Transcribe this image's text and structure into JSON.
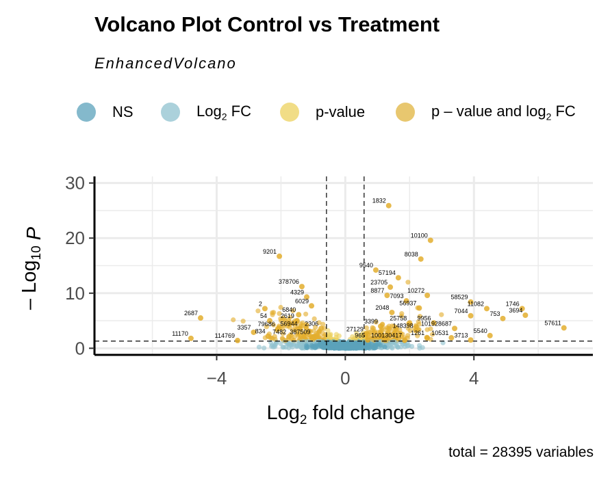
{
  "title": "Volcano Plot Control vs Treatment",
  "subtitle": "EnhancedVolcano",
  "legend": [
    {
      "label": "NS",
      "color": "#5ba2bb"
    },
    {
      "label_main": "Log",
      "label_sub": "2",
      "label_rest": " FC",
      "color": "#8fc2cf"
    },
    {
      "label": "p-value",
      "color": "#ecd15e"
    },
    {
      "label_main": "p – value and log",
      "label_sub": "2",
      "label_rest": " FC",
      "color": "#e0b43f"
    }
  ],
  "caption": "total = 28395 variables",
  "colors": {
    "ns": "#5ba2bb",
    "fc": "#8fc2cf",
    "p": "#ecd15e",
    "both": "#e3ae2e",
    "grid": "#ebebeb"
  },
  "chart_data": {
    "type": "scatter",
    "xlabel_main": "Log",
    "xlabel_sub": "2",
    "xlabel_rest": " fold change",
    "ylabel_main": "– Log",
    "ylabel_sub": "10",
    "ylabel_rest": " P",
    "xlim": [
      -7.8,
      7.7
    ],
    "ylim": [
      -1.2,
      31.2
    ],
    "xticks": [
      -4,
      0,
      4
    ],
    "yticks": [
      0,
      10,
      20,
      30
    ],
    "fc_cutoff": 0.585,
    "p_cutoff_y": 1.3,
    "labeled_points": [
      {
        "label": "1832",
        "x": 1.35,
        "y": 25.9
      },
      {
        "label": "10100",
        "x": 2.65,
        "y": 19.6
      },
      {
        "label": "9201",
        "x": -2.05,
        "y": 16.7
      },
      {
        "label": "8038",
        "x": 2.35,
        "y": 16.2
      },
      {
        "label": "9540",
        "x": 0.95,
        "y": 14.2
      },
      {
        "label": "57194",
        "x": 1.65,
        "y": 12.8
      },
      {
        "label": "378706",
        "x": -1.35,
        "y": 11.2
      },
      {
        "label": "23705",
        "x": 1.4,
        "y": 11.1
      },
      {
        "label": "8877",
        "x": 1.3,
        "y": 9.6
      },
      {
        "label": "10272",
        "x": 2.55,
        "y": 9.6
      },
      {
        "label": "4329",
        "x": -1.2,
        "y": 9.3
      },
      {
        "label": "7093",
        "x": 1.9,
        "y": 8.6
      },
      {
        "label": "58529",
        "x": 3.9,
        "y": 8.4
      },
      {
        "label": "6029",
        "x": -1.05,
        "y": 7.7
      },
      {
        "label": "56937",
        "x": 2.3,
        "y": 7.3
      },
      {
        "label": "11082",
        "x": 4.4,
        "y": 7.2
      },
      {
        "label": "1746",
        "x": 5.5,
        "y": 7.2
      },
      {
        "label": "2",
        "x": -2.5,
        "y": 7.2
      },
      {
        "label": "2048",
        "x": 1.45,
        "y": 6.5
      },
      {
        "label": "6840",
        "x": -1.45,
        "y": 6.1
      },
      {
        "label": "7044",
        "x": 3.9,
        "y": 5.9
      },
      {
        "label": "3694",
        "x": 5.6,
        "y": 6.0
      },
      {
        "label": "753",
        "x": 4.9,
        "y": 5.4
      },
      {
        "label": "2687",
        "x": -4.5,
        "y": 5.5
      },
      {
        "label": "2619",
        "x": -1.5,
        "y": 5.0
      },
      {
        "label": "54",
        "x": -2.35,
        "y": 5.0
      },
      {
        "label": "25758",
        "x": 2.0,
        "y": 4.6
      },
      {
        "label": "9956",
        "x": 2.75,
        "y": 4.6
      },
      {
        "label": "3399",
        "x": 1.1,
        "y": 4.0
      },
      {
        "label": "57611",
        "x": 6.8,
        "y": 3.7
      },
      {
        "label": "2306",
        "x": -0.75,
        "y": 3.6
      },
      {
        "label": "56944",
        "x": -1.4,
        "y": 3.6
      },
      {
        "label": "79686",
        "x": -2.1,
        "y": 3.5
      },
      {
        "label": "101928687",
        "x": 3.4,
        "y": 3.6
      },
      {
        "label": "148398",
        "x": 2.2,
        "y": 3.2
      },
      {
        "label": "3357",
        "x": -2.85,
        "y": 2.9
      },
      {
        "label": "27129",
        "x": 0.65,
        "y": 2.6
      },
      {
        "label": "834",
        "x": -2.4,
        "y": 2.2
      },
      {
        "label": "7482",
        "x": -1.75,
        "y": 2.1
      },
      {
        "label": "387509",
        "x": -1.0,
        "y": 2.1
      },
      {
        "label": "5540",
        "x": 4.5,
        "y": 2.3
      },
      {
        "label": "11170",
        "x": -4.8,
        "y": 1.8
      },
      {
        "label": "10531",
        "x": 3.3,
        "y": 1.9
      },
      {
        "label": "3713",
        "x": 3.9,
        "y": 1.5
      },
      {
        "label": "1261",
        "x": 2.55,
        "y": 1.9
      },
      {
        "label": "100130417",
        "x": 1.85,
        "y": 1.5
      },
      {
        "label": "965",
        "x": 0.7,
        "y": 1.5
      },
      {
        "label": "114769",
        "x": -3.35,
        "y": 1.4
      }
    ]
  }
}
